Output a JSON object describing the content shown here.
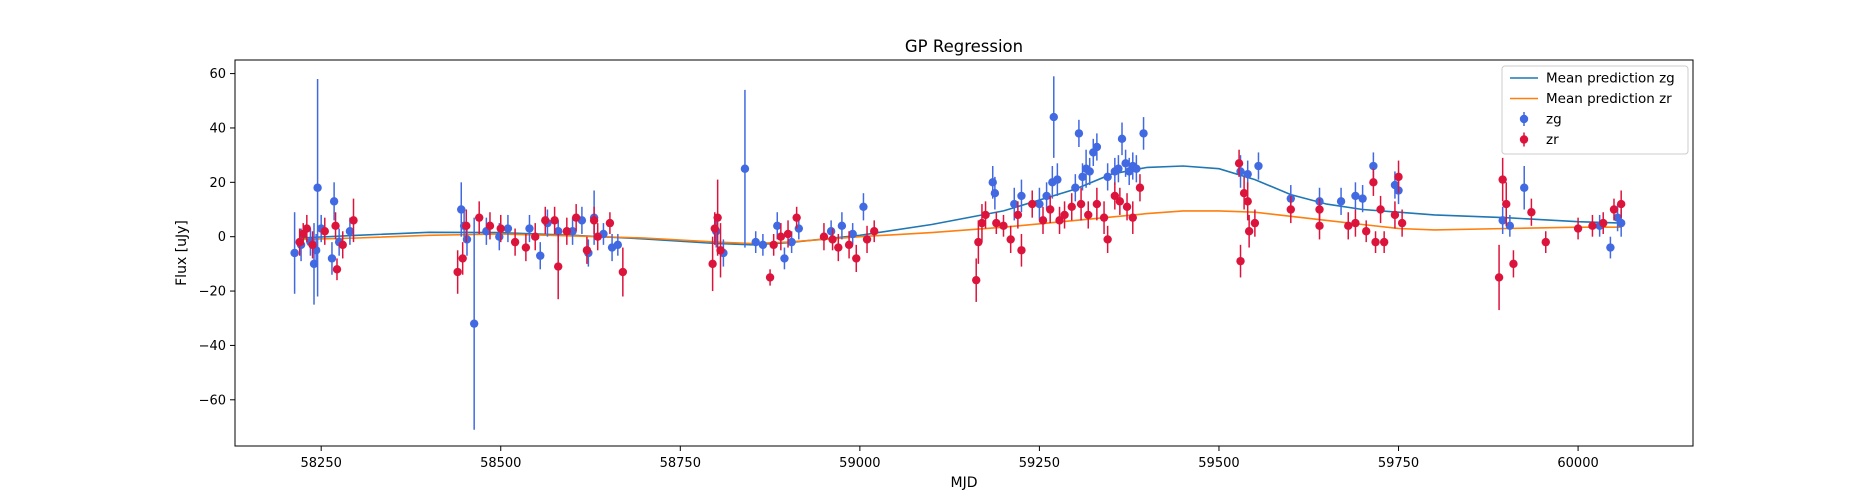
{
  "chart_data": {
    "type": "scatter",
    "title": "GP Regression",
    "xlabel": "MJD",
    "ylabel": "Flux [uJy]",
    "xlim": [
      58130,
      60160
    ],
    "ylim": [
      -77,
      65
    ],
    "xticks": [
      58250,
      58500,
      58750,
      59000,
      59250,
      59500,
      59750,
      60000
    ],
    "yticks": [
      -60,
      -40,
      -20,
      0,
      20,
      40,
      60
    ],
    "grid": false,
    "legend_position": "top-right",
    "series": [
      {
        "name": "Mean prediction zg",
        "kind": "line",
        "color": "#1f77b4",
        "x": [
          58220,
          58300,
          58400,
          58500,
          58600,
          58700,
          58800,
          58850,
          58900,
          59000,
          59100,
          59200,
          59300,
          59350,
          59400,
          59450,
          59500,
          59550,
          59600,
          59650,
          59700,
          59800,
          59900,
          60000,
          60060
        ],
        "y": [
          -0.5,
          0.5,
          1.6,
          1.5,
          0.5,
          -0.8,
          -2.5,
          -3.0,
          -2.2,
          0.5,
          4.5,
          9.5,
          17.5,
          23.0,
          25.5,
          26.0,
          25.0,
          21.0,
          15.5,
          12.0,
          10.0,
          8.0,
          7.0,
          5.5,
          5.0
        ]
      },
      {
        "name": "Mean prediction zr",
        "kind": "line",
        "color": "#ff7f0e",
        "x": [
          58220,
          58300,
          58400,
          58500,
          58600,
          58700,
          58800,
          58850,
          58900,
          59000,
          59100,
          59200,
          59300,
          59400,
          59450,
          59500,
          59550,
          59600,
          59650,
          59700,
          59750,
          59800,
          59900,
          60000,
          60060
        ],
        "y": [
          -1.0,
          -0.5,
          0.5,
          1.0,
          0.3,
          -0.5,
          -2.0,
          -2.5,
          -2.0,
          0.0,
          1.5,
          3.5,
          6.0,
          8.5,
          9.5,
          9.5,
          9.0,
          7.5,
          6.0,
          4.5,
          3.0,
          2.5,
          3.0,
          3.5,
          3.5
        ]
      },
      {
        "name": "zg",
        "kind": "errorbar",
        "color": "#4169e1",
        "points": [
          [
            58213,
            -6,
            15
          ],
          [
            58222,
            -3,
            6
          ],
          [
            58235,
            -2,
            5
          ],
          [
            58240,
            -10,
            15
          ],
          [
            58243,
            -5,
            6
          ],
          [
            58245,
            18,
            40
          ],
          [
            58250,
            3,
            5
          ],
          [
            58265,
            -8,
            6
          ],
          [
            58268,
            13,
            7
          ],
          [
            58275,
            -2,
            5
          ],
          [
            58290,
            2,
            5
          ],
          [
            58445,
            10,
            10
          ],
          [
            58449,
            4,
            6
          ],
          [
            58453,
            -1,
            6
          ],
          [
            58463,
            -32,
            39
          ],
          [
            58480,
            2,
            5
          ],
          [
            58498,
            0,
            5
          ],
          [
            58510,
            3,
            5
          ],
          [
            58540,
            3,
            5
          ],
          [
            58555,
            -7,
            5
          ],
          [
            58565,
            5,
            5
          ],
          [
            58580,
            2,
            4
          ],
          [
            58600,
            2,
            5
          ],
          [
            58613,
            6,
            5
          ],
          [
            58622,
            -6,
            5
          ],
          [
            58630,
            7,
            10
          ],
          [
            58643,
            1,
            4
          ],
          [
            58655,
            -4,
            5
          ],
          [
            58663,
            -3,
            4
          ],
          [
            58800,
            2,
            6
          ],
          [
            58810,
            -6,
            5
          ],
          [
            58840,
            25,
            29
          ],
          [
            58855,
            -2,
            4
          ],
          [
            58865,
            -3,
            4
          ],
          [
            58885,
            4,
            5
          ],
          [
            58895,
            -8,
            4
          ],
          [
            58905,
            -2,
            4
          ],
          [
            58915,
            3,
            4
          ],
          [
            58960,
            2,
            4
          ],
          [
            58975,
            4,
            5
          ],
          [
            58990,
            1,
            4
          ],
          [
            59005,
            11,
            5
          ],
          [
            59185,
            20,
            6
          ],
          [
            59188,
            16,
            6
          ],
          [
            59215,
            12,
            6
          ],
          [
            59225,
            15,
            6
          ],
          [
            59250,
            12,
            6
          ],
          [
            59260,
            15,
            5
          ],
          [
            59268,
            20,
            6
          ],
          [
            59270,
            44,
            15
          ],
          [
            59275,
            21,
            6
          ],
          [
            59300,
            18,
            5
          ],
          [
            59305,
            38,
            5
          ],
          [
            59310,
            22,
            5
          ],
          [
            59315,
            25,
            7
          ],
          [
            59320,
            24,
            5
          ],
          [
            59325,
            31,
            5
          ],
          [
            59330,
            33,
            5
          ],
          [
            59345,
            22,
            5
          ],
          [
            59355,
            24,
            5
          ],
          [
            59360,
            25,
            5
          ],
          [
            59365,
            36,
            6
          ],
          [
            59370,
            27,
            5
          ],
          [
            59375,
            24,
            5
          ],
          [
            59380,
            26,
            5
          ],
          [
            59385,
            25,
            5
          ],
          [
            59395,
            38,
            6
          ],
          [
            59530,
            24,
            6
          ],
          [
            59540,
            23,
            5
          ],
          [
            59555,
            26,
            5
          ],
          [
            59600,
            14,
            5
          ],
          [
            59640,
            13,
            5
          ],
          [
            59670,
            13,
            5
          ],
          [
            59690,
            15,
            5
          ],
          [
            59700,
            14,
            5
          ],
          [
            59715,
            26,
            5
          ],
          [
            59745,
            19,
            5
          ],
          [
            59750,
            17,
            5
          ],
          [
            59895,
            6,
            5
          ],
          [
            59905,
            4,
            4
          ],
          [
            59925,
            18,
            8
          ],
          [
            60030,
            4,
            4
          ],
          [
            60045,
            -4,
            4
          ],
          [
            60055,
            7,
            5
          ],
          [
            60060,
            5,
            5
          ]
        ]
      },
      {
        "name": "zr",
        "kind": "errorbar",
        "color": "#dc143c",
        "points": [
          [
            58220,
            -2,
            5
          ],
          [
            58225,
            1,
            4
          ],
          [
            58230,
            3,
            5
          ],
          [
            58238,
            -3,
            5
          ],
          [
            58255,
            2,
            5
          ],
          [
            58270,
            4,
            5
          ],
          [
            58272,
            -12,
            4
          ],
          [
            58280,
            -3,
            5
          ],
          [
            58295,
            6,
            8
          ],
          [
            58440,
            -13,
            8
          ],
          [
            58447,
            -8,
            6
          ],
          [
            58452,
            4,
            6
          ],
          [
            58470,
            7,
            6
          ],
          [
            58485,
            4,
            5
          ],
          [
            58500,
            3,
            5
          ],
          [
            58520,
            -2,
            5
          ],
          [
            58535,
            -4,
            5
          ],
          [
            58548,
            0,
            5
          ],
          [
            58562,
            6,
            5
          ],
          [
            58575,
            6,
            5
          ],
          [
            58580,
            -11,
            12
          ],
          [
            58592,
            2,
            5
          ],
          [
            58605,
            7,
            5
          ],
          [
            58620,
            -5,
            5
          ],
          [
            58630,
            6,
            5
          ],
          [
            58635,
            0,
            5
          ],
          [
            58652,
            5,
            4
          ],
          [
            58670,
            -13,
            9
          ],
          [
            58795,
            -10,
            10
          ],
          [
            58798,
            3,
            6
          ],
          [
            58802,
            7,
            14
          ],
          [
            58806,
            -5,
            10
          ],
          [
            58875,
            -15,
            3
          ],
          [
            58880,
            -3,
            4
          ],
          [
            58890,
            0,
            5
          ],
          [
            58900,
            1,
            5
          ],
          [
            58912,
            7,
            4
          ],
          [
            58950,
            0,
            5
          ],
          [
            58962,
            -1,
            4
          ],
          [
            58970,
            -4,
            5
          ],
          [
            58985,
            -3,
            5
          ],
          [
            58995,
            -8,
            5
          ],
          [
            59010,
            -1,
            5
          ],
          [
            59020,
            2,
            4
          ],
          [
            59162,
            -16,
            8
          ],
          [
            59165,
            -2,
            8
          ],
          [
            59170,
            5,
            7
          ],
          [
            59175,
            8,
            5
          ],
          [
            59190,
            5,
            4
          ],
          [
            59200,
            4,
            4
          ],
          [
            59210,
            -1,
            5
          ],
          [
            59220,
            8,
            5
          ],
          [
            59225,
            -5,
            6
          ],
          [
            59240,
            12,
            5
          ],
          [
            59255,
            6,
            5
          ],
          [
            59265,
            10,
            5
          ],
          [
            59278,
            6,
            5
          ],
          [
            59285,
            8,
            5
          ],
          [
            59295,
            11,
            5
          ],
          [
            59308,
            12,
            6
          ],
          [
            59318,
            8,
            5
          ],
          [
            59330,
            12,
            6
          ],
          [
            59340,
            7,
            6
          ],
          [
            59345,
            -1,
            5
          ],
          [
            59355,
            15,
            5
          ],
          [
            59362,
            13,
            5
          ],
          [
            59372,
            11,
            5
          ],
          [
            59380,
            7,
            6
          ],
          [
            59390,
            18,
            5
          ],
          [
            59528,
            27,
            5
          ],
          [
            59530,
            -9,
            6
          ],
          [
            59535,
            16,
            6
          ],
          [
            59540,
            13,
            7
          ],
          [
            59542,
            2,
            6
          ],
          [
            59550,
            5,
            5
          ],
          [
            59600,
            10,
            5
          ],
          [
            59640,
            10,
            4
          ],
          [
            59640,
            4,
            5
          ],
          [
            59680,
            4,
            5
          ],
          [
            59690,
            5,
            5
          ],
          [
            59705,
            2,
            4
          ],
          [
            59715,
            20,
            5
          ],
          [
            59718,
            -2,
            4
          ],
          [
            59725,
            10,
            5
          ],
          [
            59730,
            -2,
            4
          ],
          [
            59745,
            8,
            5
          ],
          [
            59750,
            22,
            6
          ],
          [
            59755,
            5,
            5
          ],
          [
            59890,
            -15,
            12
          ],
          [
            59895,
            21,
            8
          ],
          [
            59900,
            12,
            8
          ],
          [
            59910,
            -10,
            5
          ],
          [
            59935,
            9,
            5
          ],
          [
            59955,
            -2,
            4
          ],
          [
            60000,
            3,
            4
          ],
          [
            60020,
            4,
            4
          ],
          [
            60035,
            5,
            4
          ],
          [
            60050,
            10,
            4
          ],
          [
            60060,
            12,
            5
          ]
        ]
      }
    ]
  }
}
